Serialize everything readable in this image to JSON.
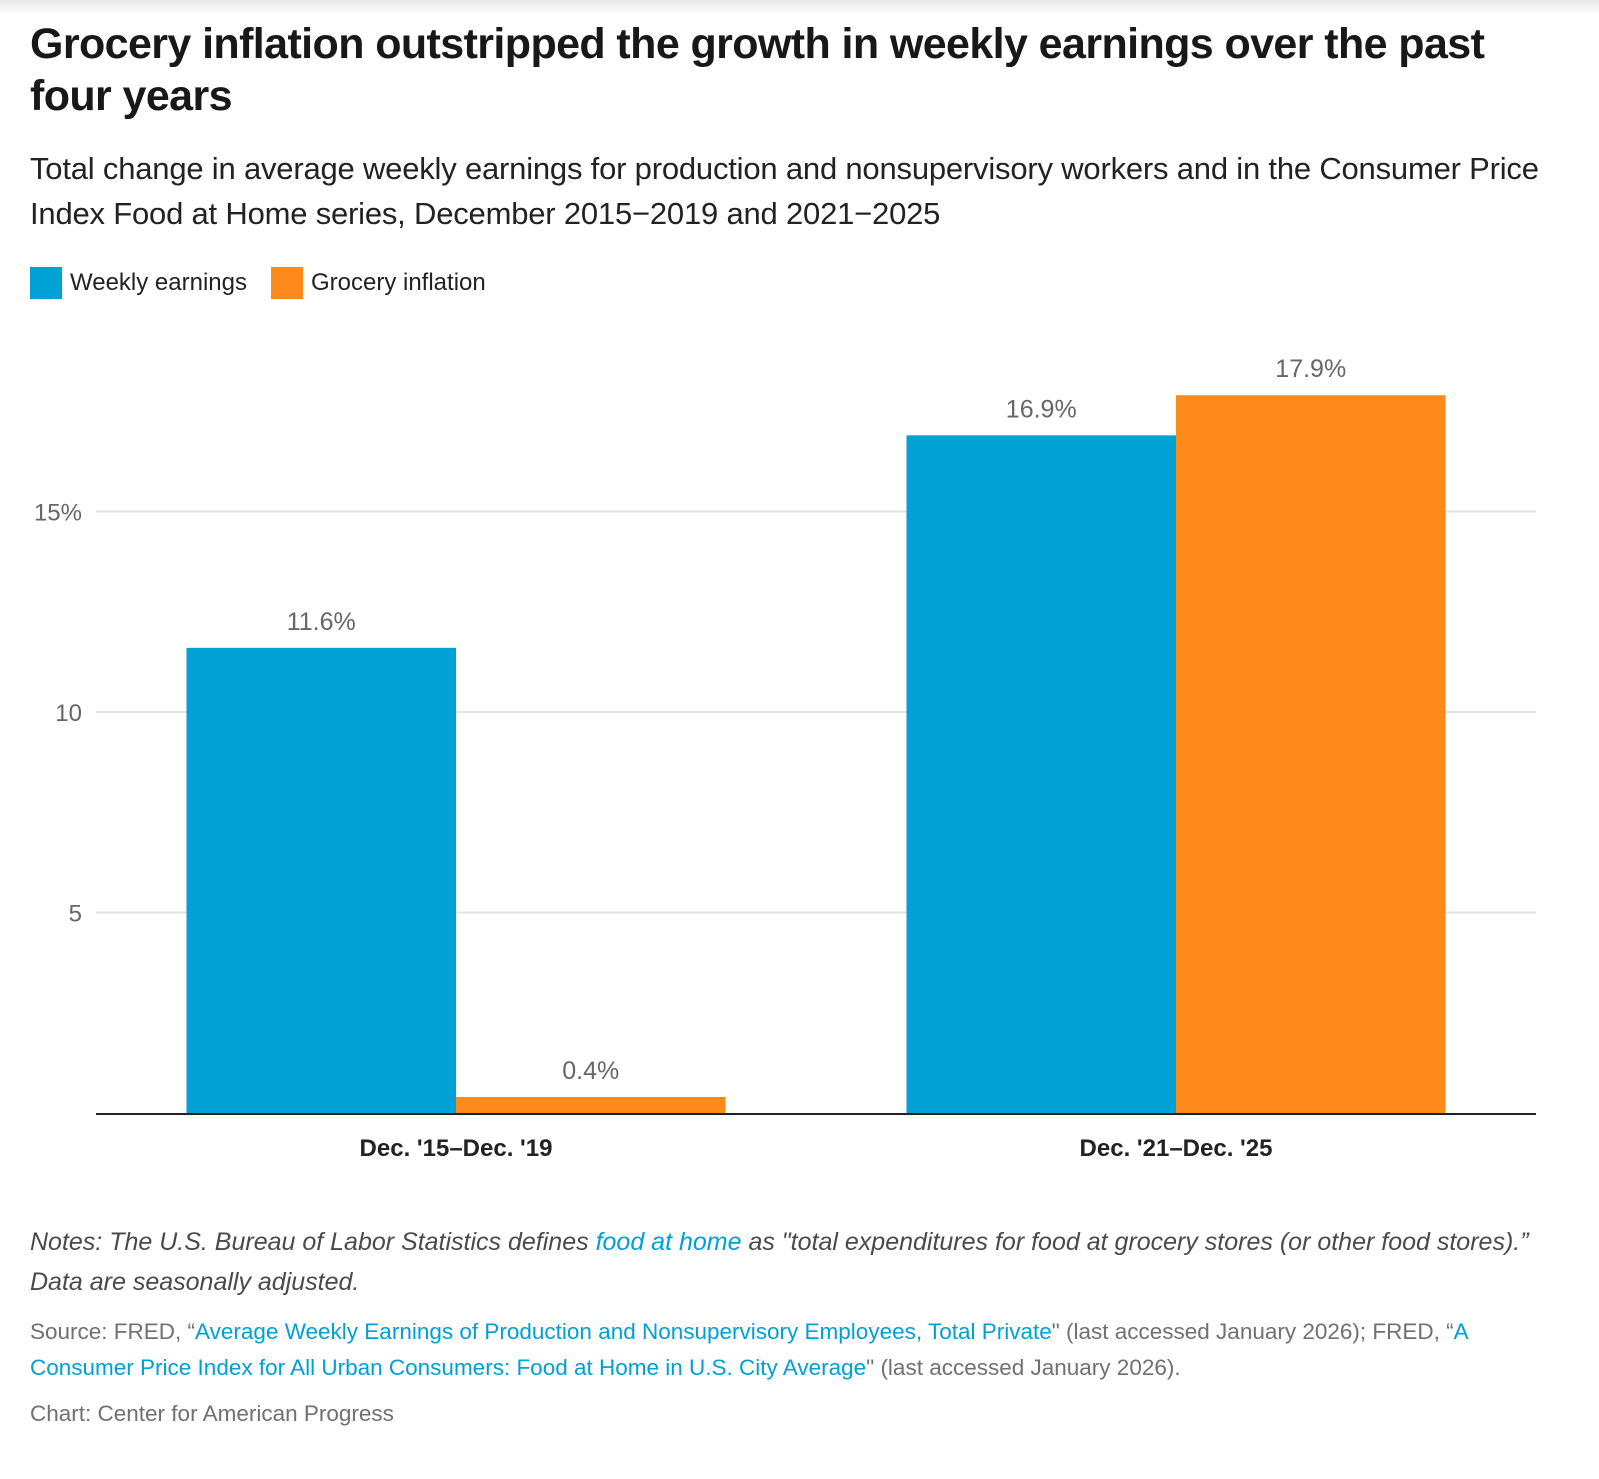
{
  "title": "Grocery inflation outstripped the growth in weekly earnings over the past four years",
  "subtitle": "Total change in average weekly earnings for production and nonsupervisory workers and in the Consumer Price Index Food at Home series, December 2015−2019 and 2021−2025",
  "notes": {
    "prefix": "Notes: The U.S. Bureau of Labor Statistics defines ",
    "link": "food at home",
    "suffix": " as \"total expenditures for food at grocery stores (or other food stores).” Data are seasonally adjusted."
  },
  "source": {
    "prefix": "Source: FRED, “",
    "link1": "Average Weekly Earnings of Production and Nonsupervisory Employees, Total Private",
    "mid": "\" (last accessed January 2026); FRED, “",
    "link2": "A Consumer Price Index for All Urban Consumers: Food at Home in U.S. City Average",
    "suffix": "\" (last accessed January 2026)."
  },
  "credit": "Chart: Center for American Progress",
  "colors": {
    "weekly": "#00a1d5",
    "grocery": "#ff8a1c"
  },
  "chart_data": {
    "type": "bar",
    "categories": [
      "Dec. '15–Dec. '19",
      "Dec. '21–Dec. '25"
    ],
    "series": [
      {
        "name": "Weekly earnings",
        "values": [
          11.6,
          16.9
        ],
        "labels": [
          "11.6%",
          "16.9%"
        ]
      },
      {
        "name": "Grocery inflation",
        "values": [
          0.4,
          17.9
        ],
        "labels": [
          "0.4%",
          "17.9%"
        ]
      }
    ],
    "yticks": [
      5,
      10,
      15
    ],
    "ytick_labels": [
      "5",
      "10",
      "15%"
    ],
    "ylim": [
      0,
      18.5
    ],
    "grid": true,
    "legend": "top-left",
    "xlabel": "",
    "ylabel": ""
  }
}
